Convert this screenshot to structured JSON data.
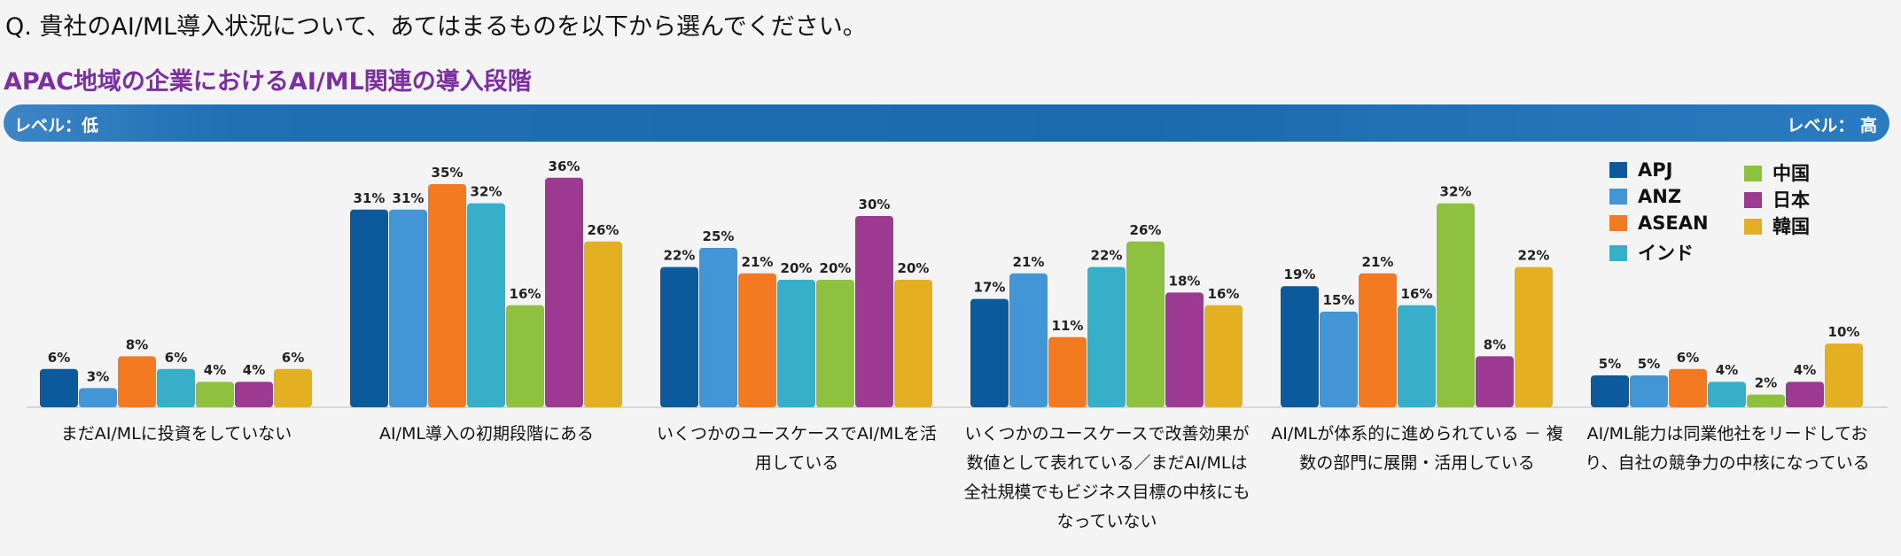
{
  "question": "Q. 貴社のAI/ML導入状況について、あてはまるものを以下から選んでください。",
  "level_low": "レベル：低",
  "level_high": "レベル： 高",
  "chart_data": {
    "type": "bar",
    "title": "APAC地域の企業におけるAI/ML関連の導入段階",
    "categories": [
      "まだAI/MLに投資をしていない",
      "AI/ML導入の初期段階にある",
      "いくつかのユースケースでAI/MLを活用している",
      "いくつかのユースケースで改善効果が数値として表れている／まだAI/MLは全社規模でもビジネス目標の中核にもなっていない",
      "AI/MLが体系的に進められている － 複数の部門に展開・活用している",
      "AI/ML能力は同業他社をリードしており、自社の競争力の中核になっている"
    ],
    "series": [
      {
        "name": "APJ",
        "color": "#0b5a9c",
        "values": [
          6,
          31,
          22,
          17,
          19,
          5
        ]
      },
      {
        "name": "ANZ",
        "color": "#4296d6",
        "values": [
          3,
          31,
          25,
          21,
          15,
          5
        ]
      },
      {
        "name": "ASEAN",
        "color": "#f47a22",
        "values": [
          8,
          35,
          21,
          11,
          21,
          6
        ]
      },
      {
        "name": "インド",
        "color": "#35b0c8",
        "values": [
          6,
          32,
          20,
          22,
          16,
          4
        ]
      },
      {
        "name": "中国",
        "color": "#8dc13f",
        "values": [
          4,
          16,
          20,
          26,
          32,
          2
        ]
      },
      {
        "name": "日本",
        "color": "#9b3a90",
        "values": [
          4,
          36,
          30,
          18,
          8,
          4
        ]
      },
      {
        "name": "韓国",
        "color": "#e2b020",
        "values": [
          6,
          26,
          20,
          16,
          22,
          10
        ]
      }
    ],
    "value_suffix": "%",
    "legend": "top-right",
    "grid": false
  }
}
